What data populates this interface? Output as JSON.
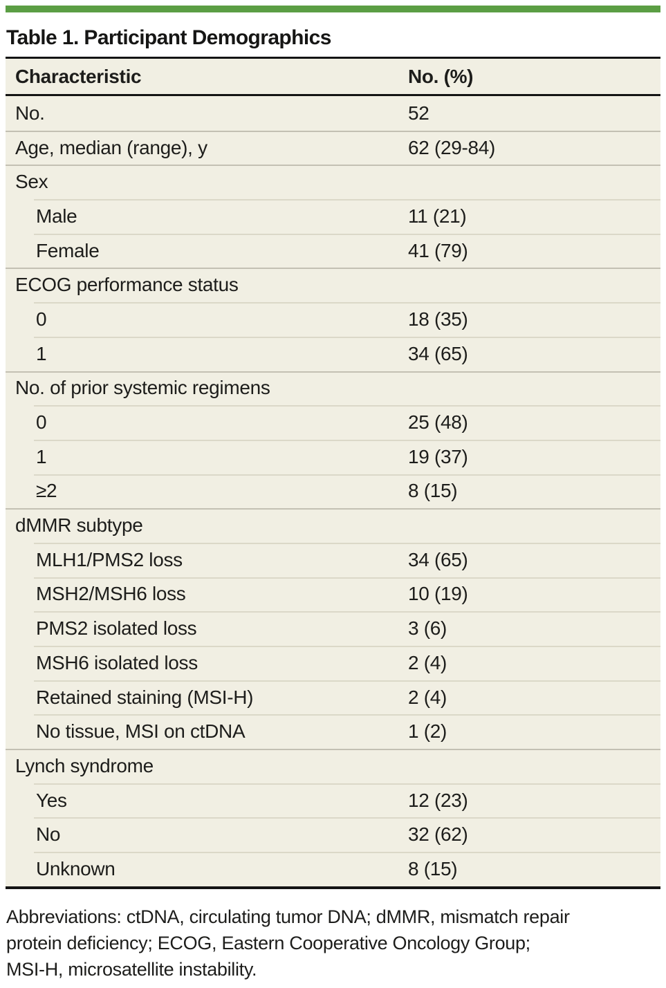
{
  "colors": {
    "accent_green": "#5b9e44",
    "table_background": "#f1efe3",
    "rule_black": "#141414",
    "separator_full": "#c3c0b3",
    "separator_indent": "#dbd8c8"
  },
  "title": "Table 1. Participant Demographics",
  "table": {
    "columns": [
      "Characteristic",
      "No. (%)"
    ],
    "rows": [
      {
        "label": "No.",
        "value": "52",
        "indent": false
      },
      {
        "label": "Age, median (range), y",
        "value": "62 (29-84)",
        "indent": false
      },
      {
        "label": "Sex",
        "value": "",
        "indent": false
      },
      {
        "label": "Male",
        "value": "11 (21)",
        "indent": true
      },
      {
        "label": "Female",
        "value": "41 (79)",
        "indent": true
      },
      {
        "label": "ECOG performance status",
        "value": "",
        "indent": false
      },
      {
        "label": "0",
        "value": "18 (35)",
        "indent": true
      },
      {
        "label": "1",
        "value": "34 (65)",
        "indent": true
      },
      {
        "label": "No. of prior systemic regimens",
        "value": "",
        "indent": false
      },
      {
        "label": "0",
        "value": "25 (48)",
        "indent": true
      },
      {
        "label": "1",
        "value": "19 (37)",
        "indent": true
      },
      {
        "label": "≥2",
        "value": "8 (15)",
        "indent": true
      },
      {
        "label": "dMMR subtype",
        "value": "",
        "indent": false
      },
      {
        "label": "MLH1/PMS2 loss",
        "value": "34 (65)",
        "indent": true
      },
      {
        "label": "MSH2/MSH6 loss",
        "value": "10 (19)",
        "indent": true
      },
      {
        "label": "PMS2 isolated loss",
        "value": "3 (6)",
        "indent": true
      },
      {
        "label": "MSH6 isolated loss",
        "value": "2 (4)",
        "indent": true
      },
      {
        "label": "Retained staining (MSI-H)",
        "value": "2 (4)",
        "indent": true
      },
      {
        "label": "No tissue, MSI on ctDNA",
        "value": "1 (2)",
        "indent": true
      },
      {
        "label": "Lynch syndrome",
        "value": "",
        "indent": false
      },
      {
        "label": "Yes",
        "value": "12 (23)",
        "indent": true
      },
      {
        "label": "No",
        "value": "32 (62)",
        "indent": true
      },
      {
        "label": "Unknown",
        "value": "8 (15)",
        "indent": true
      }
    ]
  },
  "footer": {
    "lines": [
      "Abbreviations: ctDNA, circulating tumor DNA; dMMR, mismatch repair",
      "protein deficiency; ECOG, Eastern Cooperative Oncology Group;",
      "MSI-H, microsatellite instability."
    ]
  }
}
